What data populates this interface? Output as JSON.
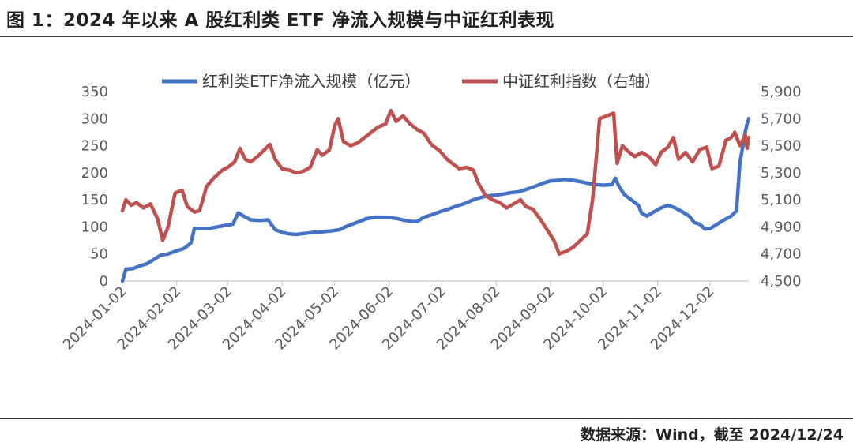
{
  "title": "图 1：2024 年以来 A 股红利类 ETF 净流入规模与中证红利表现",
  "source": "数据来源：Wind，截至 2024/12/24",
  "colors": {
    "blue": "#4472C4",
    "red": "#C0504D"
  },
  "chart_data": {
    "type": "line",
    "legend_position": "top-center",
    "x_tick_labels": [
      "2024-01-02",
      "2024-02-02",
      "2024-03-02",
      "2024-04-02",
      "2024-05-02",
      "2024-06-02",
      "2024-07-02",
      "2024-08-02",
      "2024-09-02",
      "2024-10-02",
      "2024-11-02",
      "2024-12-02"
    ],
    "x_range": [
      "2024-01-02",
      "2024-12-24"
    ],
    "y_left": {
      "ticks": [
        "0",
        "50",
        "100",
        "150",
        "200",
        "250",
        "300",
        "350"
      ],
      "range": [
        0,
        350
      ]
    },
    "y_right": {
      "ticks": [
        "4,500",
        "4,700",
        "4,900",
        "5,100",
        "5,300",
        "5,500",
        "5,700",
        "5,900"
      ],
      "range": [
        4500,
        5900
      ]
    },
    "series": [
      {
        "name": "红利类ETF净流入规模（亿元）",
        "axis": "left",
        "color": "#4472C4",
        "points": [
          [
            "2024-01-02",
            0
          ],
          [
            "2024-01-04",
            22
          ],
          [
            "2024-01-08",
            23
          ],
          [
            "2024-01-12",
            28
          ],
          [
            "2024-01-16",
            32
          ],
          [
            "2024-01-20",
            40
          ],
          [
            "2024-01-24",
            48
          ],
          [
            "2024-01-28",
            50
          ],
          [
            "2024-02-01",
            55
          ],
          [
            "2024-02-06",
            60
          ],
          [
            "2024-02-10",
            70
          ],
          [
            "2024-02-12",
            97
          ],
          [
            "2024-02-16",
            97
          ],
          [
            "2024-02-20",
            97
          ],
          [
            "2024-02-25",
            100
          ],
          [
            "2024-03-01",
            103
          ],
          [
            "2024-03-05",
            105
          ],
          [
            "2024-03-08",
            126
          ],
          [
            "2024-03-11",
            120
          ],
          [
            "2024-03-15",
            113
          ],
          [
            "2024-03-20",
            112
          ],
          [
            "2024-03-25",
            113
          ],
          [
            "2024-03-29",
            95
          ],
          [
            "2024-04-02",
            90
          ],
          [
            "2024-04-06",
            87
          ],
          [
            "2024-04-10",
            86
          ],
          [
            "2024-04-15",
            88
          ],
          [
            "2024-04-20",
            90
          ],
          [
            "2024-04-25",
            91
          ],
          [
            "2024-05-01",
            93
          ],
          [
            "2024-05-05",
            95
          ],
          [
            "2024-05-08",
            100
          ],
          [
            "2024-05-12",
            105
          ],
          [
            "2024-05-16",
            110
          ],
          [
            "2024-05-20",
            115
          ],
          [
            "2024-05-25",
            118
          ],
          [
            "2024-05-30",
            118
          ],
          [
            "2024-06-03",
            117
          ],
          [
            "2024-06-07",
            115
          ],
          [
            "2024-06-11",
            112
          ],
          [
            "2024-06-15",
            110
          ],
          [
            "2024-06-18",
            110
          ],
          [
            "2024-06-22",
            118
          ],
          [
            "2024-06-26",
            122
          ],
          [
            "2024-07-01",
            128
          ],
          [
            "2024-07-05",
            132
          ],
          [
            "2024-07-10",
            138
          ],
          [
            "2024-07-15",
            143
          ],
          [
            "2024-07-20",
            150
          ],
          [
            "2024-07-25",
            155
          ],
          [
            "2024-07-30",
            158
          ],
          [
            "2024-08-05",
            160
          ],
          [
            "2024-08-10",
            163
          ],
          [
            "2024-08-15",
            165
          ],
          [
            "2024-08-20",
            170
          ],
          [
            "2024-08-25",
            176
          ],
          [
            "2024-08-30",
            182
          ],
          [
            "2024-09-02",
            185
          ],
          [
            "2024-09-06",
            186
          ],
          [
            "2024-09-10",
            188
          ],
          [
            "2024-09-15",
            186
          ],
          [
            "2024-09-20",
            183
          ],
          [
            "2024-09-24",
            180
          ],
          [
            "2024-09-28",
            178
          ],
          [
            "2024-10-02",
            177
          ],
          [
            "2024-10-07",
            178
          ],
          [
            "2024-10-09",
            190
          ],
          [
            "2024-10-11",
            175
          ],
          [
            "2024-10-14",
            160
          ],
          [
            "2024-10-18",
            150
          ],
          [
            "2024-10-22",
            140
          ],
          [
            "2024-10-24",
            125
          ],
          [
            "2024-10-27",
            120
          ],
          [
            "2024-10-31",
            128
          ],
          [
            "2024-11-04",
            135
          ],
          [
            "2024-11-08",
            140
          ],
          [
            "2024-11-12",
            135
          ],
          [
            "2024-11-16",
            128
          ],
          [
            "2024-11-20",
            120
          ],
          [
            "2024-11-23",
            108
          ],
          [
            "2024-11-26",
            105
          ],
          [
            "2024-11-29",
            96
          ],
          [
            "2024-12-02",
            97
          ],
          [
            "2024-12-06",
            105
          ],
          [
            "2024-12-10",
            113
          ],
          [
            "2024-12-14",
            120
          ],
          [
            "2024-12-17",
            130
          ],
          [
            "2024-12-19",
            220
          ],
          [
            "2024-12-21",
            255
          ],
          [
            "2024-12-22",
            275
          ],
          [
            "2024-12-23",
            290
          ],
          [
            "2024-12-24",
            300
          ]
        ]
      },
      {
        "name": "中证红利指数（右轴）",
        "axis": "right",
        "color": "#C0504D",
        "points": [
          [
            "2024-01-02",
            5020
          ],
          [
            "2024-01-04",
            5100
          ],
          [
            "2024-01-07",
            5060
          ],
          [
            "2024-01-10",
            5080
          ],
          [
            "2024-01-14",
            5040
          ],
          [
            "2024-01-18",
            5070
          ],
          [
            "2024-01-22",
            4960
          ],
          [
            "2024-01-25",
            4800
          ],
          [
            "2024-01-28",
            4900
          ],
          [
            "2024-02-01",
            5150
          ],
          [
            "2024-02-05",
            5170
          ],
          [
            "2024-02-08",
            5050
          ],
          [
            "2024-02-12",
            5010
          ],
          [
            "2024-02-15",
            5020
          ],
          [
            "2024-02-19",
            5200
          ],
          [
            "2024-02-23",
            5260
          ],
          [
            "2024-02-28",
            5320
          ],
          [
            "2024-03-02",
            5340
          ],
          [
            "2024-03-06",
            5380
          ],
          [
            "2024-03-09",
            5480
          ],
          [
            "2024-03-12",
            5400
          ],
          [
            "2024-03-15",
            5380
          ],
          [
            "2024-03-19",
            5420
          ],
          [
            "2024-03-23",
            5470
          ],
          [
            "2024-03-26",
            5510
          ],
          [
            "2024-03-29",
            5400
          ],
          [
            "2024-04-02",
            5330
          ],
          [
            "2024-04-06",
            5320
          ],
          [
            "2024-04-10",
            5300
          ],
          [
            "2024-04-14",
            5310
          ],
          [
            "2024-04-18",
            5340
          ],
          [
            "2024-04-22",
            5470
          ],
          [
            "2024-04-25",
            5430
          ],
          [
            "2024-04-29",
            5470
          ],
          [
            "2024-05-02",
            5650
          ],
          [
            "2024-05-04",
            5700
          ],
          [
            "2024-05-07",
            5530
          ],
          [
            "2024-05-11",
            5500
          ],
          [
            "2024-05-15",
            5520
          ],
          [
            "2024-05-19",
            5560
          ],
          [
            "2024-05-23",
            5600
          ],
          [
            "2024-05-27",
            5640
          ],
          [
            "2024-05-31",
            5660
          ],
          [
            "2024-06-03",
            5760
          ],
          [
            "2024-06-06",
            5680
          ],
          [
            "2024-06-10",
            5720
          ],
          [
            "2024-06-14",
            5660
          ],
          [
            "2024-06-18",
            5620
          ],
          [
            "2024-06-22",
            5590
          ],
          [
            "2024-06-26",
            5510
          ],
          [
            "2024-07-01",
            5460
          ],
          [
            "2024-07-05",
            5400
          ],
          [
            "2024-07-08",
            5370
          ],
          [
            "2024-07-12",
            5330
          ],
          [
            "2024-07-16",
            5340
          ],
          [
            "2024-07-20",
            5320
          ],
          [
            "2024-07-23",
            5220
          ],
          [
            "2024-07-27",
            5130
          ],
          [
            "2024-07-31",
            5100
          ],
          [
            "2024-08-04",
            5080
          ],
          [
            "2024-08-08",
            5040
          ],
          [
            "2024-08-12",
            5070
          ],
          [
            "2024-08-16",
            5100
          ],
          [
            "2024-08-19",
            5050
          ],
          [
            "2024-08-23",
            5030
          ],
          [
            "2024-08-27",
            4960
          ],
          [
            "2024-08-31",
            4880
          ],
          [
            "2024-09-04",
            4800
          ],
          [
            "2024-09-07",
            4700
          ],
          [
            "2024-09-11",
            4720
          ],
          [
            "2024-09-15",
            4750
          ],
          [
            "2024-09-19",
            4800
          ],
          [
            "2024-09-23",
            4850
          ],
          [
            "2024-09-26",
            5100
          ],
          [
            "2024-09-30",
            5700
          ],
          [
            "2024-10-04",
            5720
          ],
          [
            "2024-10-08",
            5740
          ],
          [
            "2024-10-10",
            5370
          ],
          [
            "2024-10-13",
            5500
          ],
          [
            "2024-10-16",
            5460
          ],
          [
            "2024-10-20",
            5420
          ],
          [
            "2024-10-24",
            5450
          ],
          [
            "2024-10-28",
            5420
          ],
          [
            "2024-11-01",
            5360
          ],
          [
            "2024-11-04",
            5450
          ],
          [
            "2024-11-08",
            5490
          ],
          [
            "2024-11-11",
            5560
          ],
          [
            "2024-11-14",
            5400
          ],
          [
            "2024-11-18",
            5450
          ],
          [
            "2024-11-22",
            5380
          ],
          [
            "2024-11-26",
            5470
          ],
          [
            "2024-11-30",
            5490
          ],
          [
            "2024-12-03",
            5330
          ],
          [
            "2024-12-07",
            5350
          ],
          [
            "2024-12-11",
            5540
          ],
          [
            "2024-12-14",
            5560
          ],
          [
            "2024-12-16",
            5600
          ],
          [
            "2024-12-19",
            5500
          ],
          [
            "2024-12-22",
            5580
          ],
          [
            "2024-12-23",
            5480
          ],
          [
            "2024-12-24",
            5560
          ]
        ]
      }
    ]
  }
}
